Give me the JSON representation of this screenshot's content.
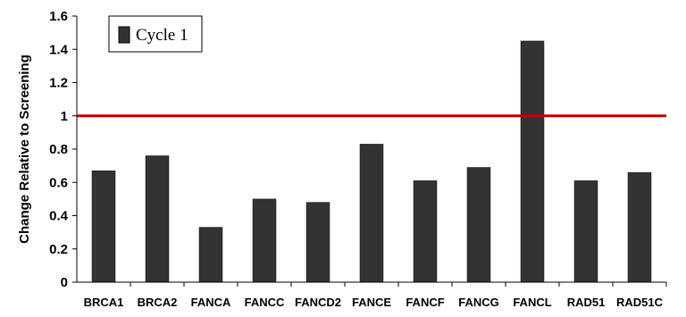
{
  "chart_data": {
    "type": "bar",
    "title": "",
    "xlabel": "",
    "ylabel": "Change Relative to Screening",
    "categories": [
      "BRCA1",
      "BRCA2",
      "FANCA",
      "FANCC",
      "FANCD2",
      "FANCE",
      "FANCF",
      "FANCG",
      "FANCL",
      "RAD51",
      "RAD51C"
    ],
    "series": [
      {
        "name": "Cycle 1",
        "color": "#333333",
        "values": [
          0.67,
          0.76,
          0.33,
          0.5,
          0.48,
          0.83,
          0.61,
          0.69,
          1.45,
          0.61,
          0.66
        ]
      }
    ],
    "ylim": [
      0,
      1.6
    ],
    "yticks": [
      "0",
      "0.2",
      "0.4",
      "0.6",
      "0.8",
      "1",
      "1.2",
      "1.4",
      "1.6"
    ],
    "reference_line": {
      "value": 1,
      "color": "#c00000"
    },
    "legend_position": "top-left",
    "grid": false
  }
}
